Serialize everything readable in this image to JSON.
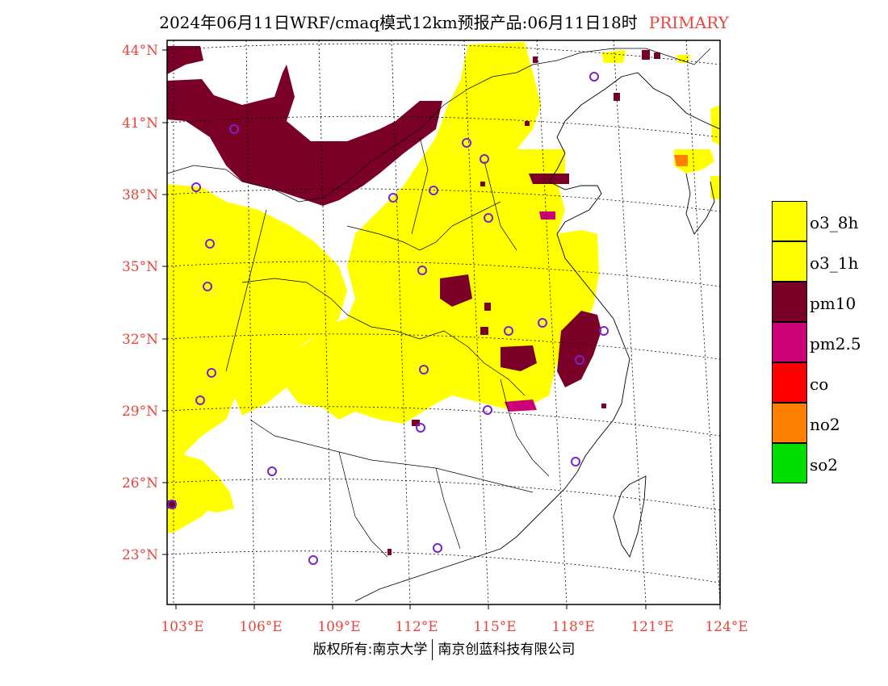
{
  "title": {
    "main": "2024年06月11日WRF/cmaq模式12km预报产品:06月11日18时",
    "tag": "PRIMARY"
  },
  "axes": {
    "lat_labels": [
      "44°N",
      "41°N",
      "38°N",
      "35°N",
      "32°N",
      "29°N",
      "26°N",
      "23°N"
    ],
    "lon_labels": [
      "103°E",
      "106°E",
      "109°E",
      "112°E",
      "115°E",
      "118°E",
      "121°E",
      "124°E"
    ]
  },
  "legend": [
    {
      "label": "o3_8h",
      "color": "#ffff00"
    },
    {
      "label": "o3_1h",
      "color": "#ffff00"
    },
    {
      "label": "pm10",
      "color": "#7a0028"
    },
    {
      "label": "pm2.5",
      "color": "#cc0077"
    },
    {
      "label": "co",
      "color": "#ff0000"
    },
    {
      "label": "no2",
      "color": "#ff8000"
    },
    {
      "label": "so2",
      "color": "#00dd00"
    }
  ],
  "footer": {
    "left": "版权所有:南京大学",
    "right": "南京创蓝科技有限公司"
  },
  "colors": {
    "label": "#e8453c",
    "station": "#7a22cc",
    "o3": "#ffff00",
    "pm10": "#7a0028",
    "pm25": "#cc0077",
    "no2": "#ff8000"
  }
}
